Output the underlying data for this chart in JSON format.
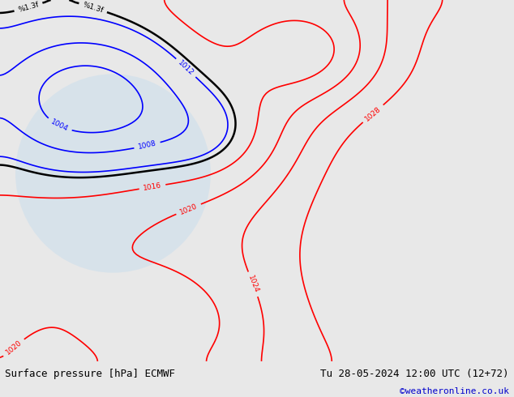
{
  "title_left": "Surface pressure [hPa] ECMWF",
  "title_right": "Tu 28-05-2024 12:00 UTC (12+72)",
  "credit": "©weatheronline.co.uk",
  "bg_color": "#e8e8e8",
  "map_bg_color": "#c8e6c8",
  "figsize": [
    6.34,
    4.9
  ],
  "dpi": 100,
  "bottom_bar_color": "#f0f0f0",
  "title_fontsize": 9,
  "credit_color": "#0000cc",
  "credit_fontsize": 8
}
